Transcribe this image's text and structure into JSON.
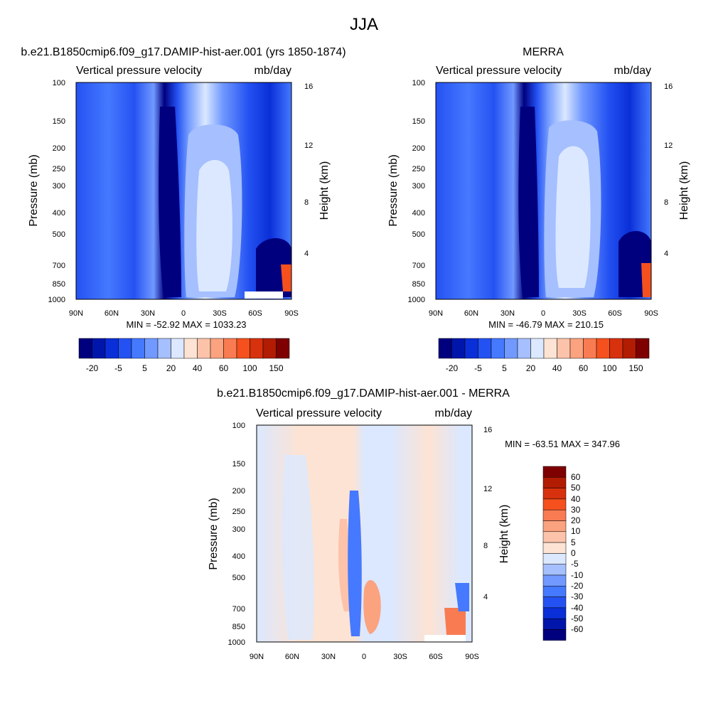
{
  "page": {
    "title": "JJA"
  },
  "chart_data": [
    {
      "type": "heatmap",
      "title": "b.e21.B1850cmip6.f09_g17.DAMIP-hist-aer.001 (yrs 1850-1874)",
      "left_subtitle": "Vertical pressure velocity",
      "right_subtitle": "mb/day",
      "ylabel": "Pressure (mb)",
      "ylabel_right": "Height (km)",
      "x_ticks": [
        "90N",
        "60N",
        "30N",
        "0",
        "30S",
        "60S",
        "90S"
      ],
      "y_ticks": [
        "100",
        "150",
        "200",
        "250",
        "300",
        "400",
        "500",
        "700",
        "850",
        "1000"
      ],
      "height_ticks": [
        "16",
        "12",
        "8",
        "4"
      ],
      "stats": "MIN = -52.92  MAX = 1033.23",
      "colorbar_labels": [
        "-20",
        "-5",
        "5",
        "20",
        "40",
        "60",
        "100",
        "150"
      ],
      "colors": [
        "#00007f",
        "#0016ab",
        "#0a2fd8",
        "#2452f2",
        "#4579ff",
        "#7199ff",
        "#a5bfff",
        "#dbe8ff",
        "#fde3d3",
        "#fcc3aa",
        "#fba27f",
        "#f97b52",
        "#f5501d",
        "#d7310d",
        "#b21c02",
        "#7f0000"
      ]
    },
    {
      "type": "heatmap",
      "title": "MERRA",
      "left_subtitle": "Vertical pressure velocity",
      "right_subtitle": "mb/day",
      "ylabel": "Pressure (mb)",
      "ylabel_right": "Height (km)",
      "x_ticks": [
        "90N",
        "60N",
        "30N",
        "0",
        "30S",
        "60S",
        "90S"
      ],
      "y_ticks": [
        "100",
        "150",
        "200",
        "250",
        "300",
        "400",
        "500",
        "700",
        "850",
        "1000"
      ],
      "height_ticks": [
        "16",
        "12",
        "8",
        "4"
      ],
      "stats": "MIN = -46.79  MAX = 210.15",
      "colorbar_labels": [
        "-20",
        "-5",
        "5",
        "20",
        "40",
        "60",
        "100",
        "150"
      ],
      "colors": [
        "#00007f",
        "#0016ab",
        "#0a2fd8",
        "#2452f2",
        "#4579ff",
        "#7199ff",
        "#a5bfff",
        "#dbe8ff",
        "#fde3d3",
        "#fcc3aa",
        "#fba27f",
        "#f97b52",
        "#f5501d",
        "#d7310d",
        "#b21c02",
        "#7f0000"
      ]
    },
    {
      "type": "heatmap",
      "title": "b.e21.B1850cmip6.f09_g17.DAMIP-hist-aer.001 - MERRA",
      "left_subtitle": "Vertical pressure velocity",
      "right_subtitle": "mb/day",
      "ylabel": "Pressure (mb)",
      "ylabel_right": "Height (km)",
      "x_ticks": [
        "90N",
        "60N",
        "30N",
        "0",
        "30S",
        "60S",
        "90S"
      ],
      "y_ticks": [
        "100",
        "150",
        "200",
        "250",
        "300",
        "400",
        "500",
        "700",
        "850",
        "1000"
      ],
      "height_ticks": [
        "16",
        "12",
        "8",
        "4"
      ],
      "stats": "MIN = -63.51  MAX = 347.96",
      "colorbar_labels": [
        "60",
        "50",
        "40",
        "30",
        "20",
        "10",
        "5",
        "0",
        "-5",
        "-10",
        "-20",
        "-30",
        "-40",
        "-50",
        "-60"
      ],
      "colors": [
        "#7f0000",
        "#b21c02",
        "#d7310d",
        "#f5501d",
        "#f97b52",
        "#fba27f",
        "#fcc3aa",
        "#fde3d3",
        "#dbe8ff",
        "#a5bfff",
        "#7199ff",
        "#4579ff",
        "#2452f2",
        "#0a2fd8",
        "#0016ab",
        "#00007f"
      ]
    }
  ]
}
